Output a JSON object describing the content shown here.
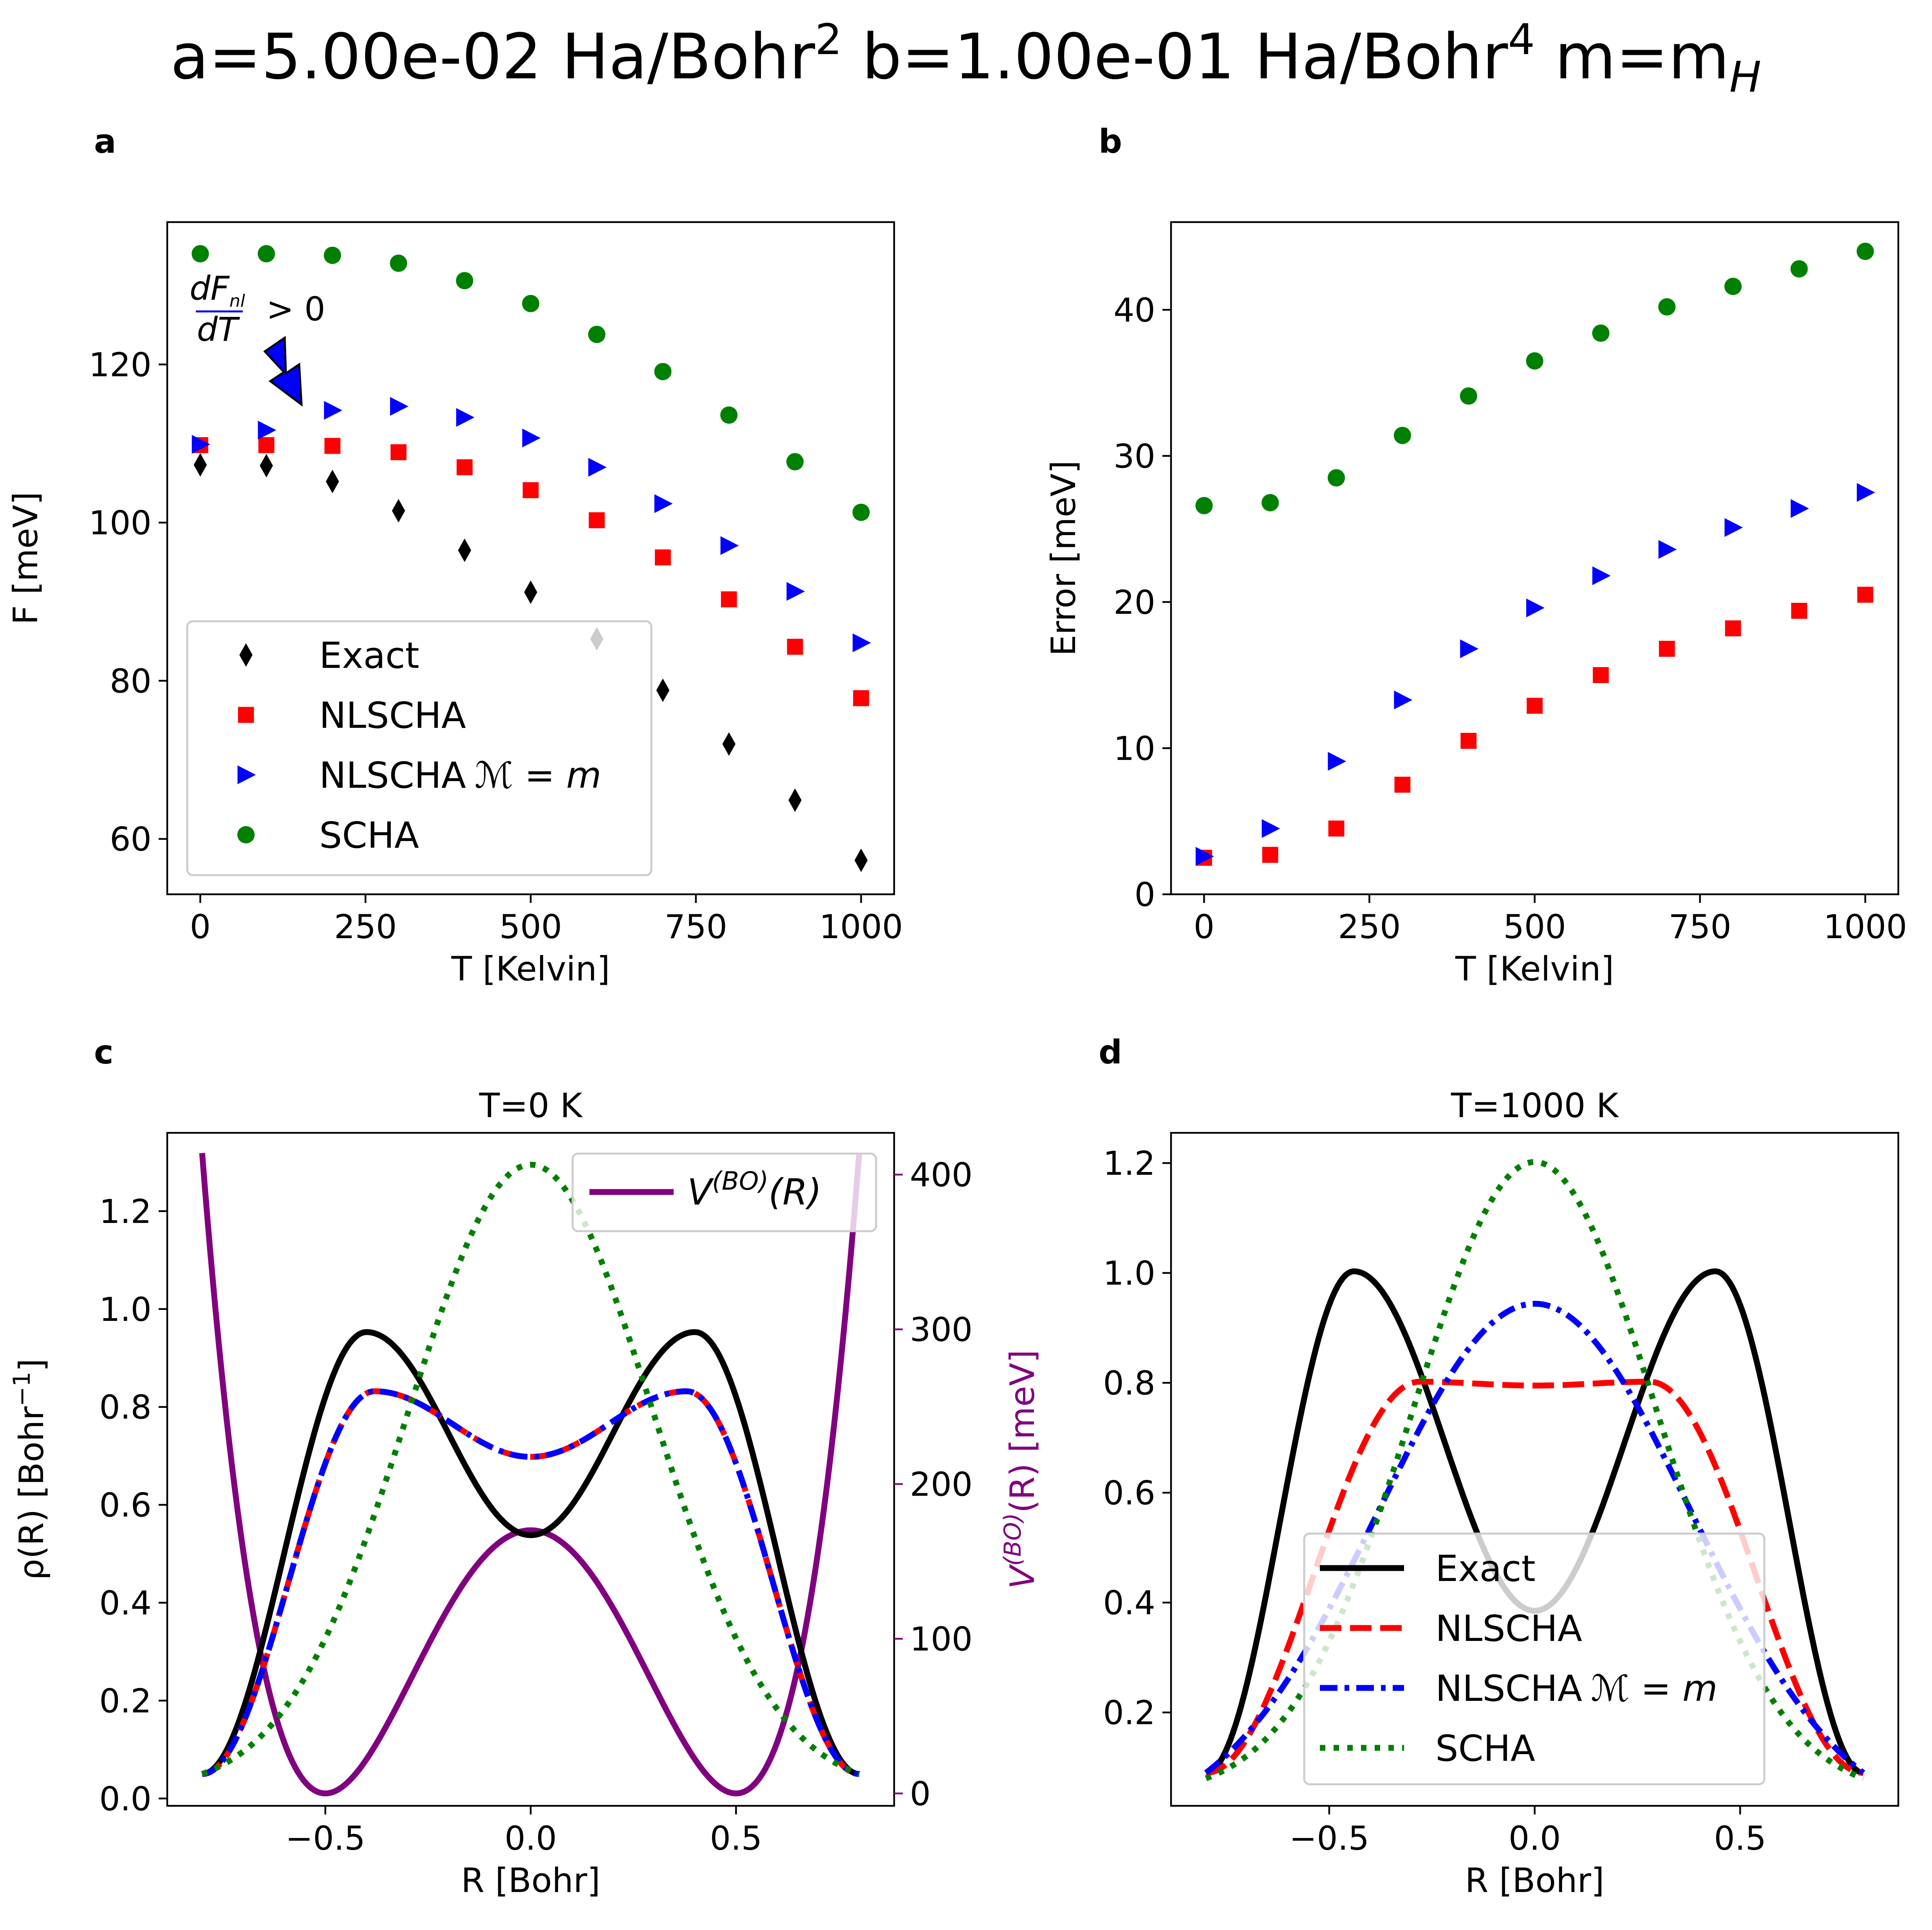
{
  "figure_title": {
    "a_label": "a=5.00e-02 Ha/Bohr",
    "a_sup": "2",
    "b_label": " b=1.00e-01 Ha/Bohr",
    "b_sup": "4",
    "m_label": " m=m",
    "m_sub": "H"
  },
  "colors": {
    "exact": "#000000",
    "nlscha": "#ff0000",
    "nlscha_m": "#0000ff",
    "scha": "#008000",
    "vbo": "#800080",
    "annotation": "#0000ff"
  },
  "chart_data": [
    {
      "panel": "a",
      "type": "scatter",
      "title": "",
      "xlabel": "T [Kelvin]",
      "ylabel": "F [meV]",
      "xlim": [
        -50,
        1050
      ],
      "ylim": [
        53,
        138
      ],
      "xticks": [
        "0",
        "250",
        "500",
        "750",
        "1000"
      ],
      "yticks": [
        "60",
        "80",
        "100",
        "120"
      ],
      "x": [
        0,
        100,
        200,
        300,
        400,
        500,
        600,
        700,
        800,
        900,
        1000
      ],
      "series": [
        {
          "name": "Exact",
          "marker": "diamond",
          "color": "#000000",
          "values": [
            107.3,
            107.2,
            105.2,
            101.5,
            96.5,
            91.2,
            85.3,
            78.8,
            72.0,
            64.9,
            57.3
          ]
        },
        {
          "name": "NLSCHA",
          "marker": "square",
          "color": "#ff0000",
          "values": [
            109.8,
            109.8,
            109.7,
            108.9,
            107.0,
            104.1,
            100.3,
            95.6,
            90.3,
            84.3,
            77.8
          ]
        },
        {
          "name": "NLSCHA",
          "name_math": "ℳ = m",
          "marker": "triangle-right",
          "color": "#0000ff",
          "values": [
            109.9,
            111.7,
            114.2,
            114.7,
            113.3,
            110.7,
            107.0,
            102.4,
            97.1,
            91.3,
            84.8
          ]
        },
        {
          "name": "SCHA",
          "marker": "circle",
          "color": "#008000",
          "values": [
            134.0,
            134.0,
            133.8,
            132.8,
            130.6,
            127.7,
            123.8,
            119.1,
            113.6,
            107.7,
            101.3
          ]
        }
      ],
      "legend": [
        "Exact",
        "NLSCHA",
        "NLSCHA",
        "SCHA"
      ],
      "legend_math": "ℳ = m",
      "legend_position": "lower-left",
      "annotation": {
        "num": "dF",
        "num_sub": "nl",
        "den": "dT",
        "rel": "> 0"
      }
    },
    {
      "panel": "b",
      "type": "scatter",
      "title": "",
      "xlabel": "T [Kelvin]",
      "ylabel": "Error [meV]",
      "xlim": [
        -50,
        1050
      ],
      "ylim": [
        0,
        46
      ],
      "xticks": [
        "0",
        "250",
        "500",
        "750",
        "1000"
      ],
      "yticks": [
        "0",
        "10",
        "20",
        "30",
        "40"
      ],
      "x": [
        0,
        100,
        200,
        300,
        400,
        500,
        600,
        700,
        800,
        900,
        1000
      ],
      "series": [
        {
          "name": "NLSCHA",
          "marker": "square",
          "color": "#ff0000",
          "values": [
            2.5,
            2.7,
            4.5,
            7.5,
            10.5,
            12.9,
            15.0,
            16.8,
            18.2,
            19.4,
            20.5
          ]
        },
        {
          "name": "NLSCHA ℳ = m",
          "marker": "triangle-right",
          "color": "#0000ff",
          "values": [
            2.6,
            4.5,
            9.1,
            13.3,
            16.8,
            19.6,
            21.8,
            23.6,
            25.1,
            26.4,
            27.5
          ]
        },
        {
          "name": "SCHA",
          "marker": "circle",
          "color": "#008000",
          "values": [
            26.6,
            26.8,
            28.5,
            31.4,
            34.1,
            36.5,
            38.4,
            40.2,
            41.6,
            42.8,
            44.0
          ]
        }
      ]
    },
    {
      "panel": "c",
      "type": "line",
      "title": "T=0 K",
      "xlabel": "R [Bohr]",
      "ylabel": "ρ(R) [Bohr⁻¹]",
      "ylabel_parts": {
        "main": "ρ(R) [Bohr",
        "sup": "−1",
        "end": "]"
      },
      "y2label_parts": {
        "main": "V",
        "sup": "(BO)",
        "end": "(R) [meV]"
      },
      "xlim": [
        -0.885,
        0.885
      ],
      "ylim": [
        -0.015,
        1.36
      ],
      "y2lim": [
        -8,
        427
      ],
      "xticks": [
        "−0.5",
        "0.0",
        "0.5"
      ],
      "yticks": [
        "0.0",
        "0.2",
        "0.4",
        "0.6",
        "0.8",
        "1.0",
        "1.2"
      ],
      "y2ticks": [
        "0",
        "100",
        "200",
        "300",
        "400"
      ],
      "x_range": [
        -0.8,
        0.8
      ],
      "series": [
        {
          "name": "Exact",
          "style": "solid",
          "color": "#000000",
          "profile": {
            "kind": "double-peak",
            "peak_x": 0.4,
            "peak": 0.953,
            "center": 0.538,
            "end": 0.05
          }
        },
        {
          "name": "NLSCHA",
          "style": "dashed",
          "color": "#ff0000",
          "profile": {
            "kind": "double-peak",
            "peak_x": 0.38,
            "peak": 0.832,
            "center": 0.698,
            "end": 0.05
          }
        },
        {
          "name": "NLSCHA ℳ = m",
          "style": "dashdot",
          "color": "#0000ff",
          "profile": {
            "kind": "double-peak",
            "peak_x": 0.38,
            "peak": 0.832,
            "center": 0.698,
            "end": 0.05
          }
        },
        {
          "name": "SCHA",
          "style": "dotted",
          "color": "#008000",
          "profile": {
            "kind": "gaussian",
            "peak": 1.295,
            "sigma": 0.2974,
            "end": 0.05
          }
        },
        {
          "name": "V(BO)(R)",
          "axis": "right",
          "style": "solid",
          "color": "#800080",
          "profile": {
            "kind": "double-well",
            "barrier_meV": 170.1,
            "min_x": 0.5
          }
        }
      ],
      "legend": {
        "main": "V",
        "sup": "(BO)",
        "end": "(R)"
      },
      "legend_position": "upper-right"
    },
    {
      "panel": "d",
      "type": "line",
      "title": "T=1000 K",
      "xlabel": "R [Bohr]",
      "ylabel": "",
      "xlim": [
        -0.885,
        0.885
      ],
      "ylim": [
        0.03,
        1.255
      ],
      "xticks": [
        "−0.5",
        "0.0",
        "0.5"
      ],
      "yticks": [
        "0.2",
        "0.4",
        "0.6",
        "0.8",
        "1.0",
        "1.2"
      ],
      "x_range": [
        -0.8,
        0.8
      ],
      "series": [
        {
          "name": "Exact",
          "style": "solid",
          "color": "#000000",
          "profile": {
            "kind": "double-peak",
            "peak_x": 0.44,
            "peak": 1.003,
            "center": 0.385,
            "end": 0.09
          }
        },
        {
          "name": "NLSCHA",
          "style": "dashed",
          "color": "#ff0000",
          "profile": {
            "kind": "double-peak",
            "peak_x": 0.28,
            "peak": 0.802,
            "center": 0.795,
            "end": 0.09
          }
        },
        {
          "name": "NLSCHA ℳ = m",
          "style": "dashdot",
          "color": "#0000ff",
          "profile": {
            "kind": "gaussian",
            "peak": 0.944,
            "sigma": 0.38,
            "end": 0.09
          }
        },
        {
          "name": "SCHA",
          "style": "dotted",
          "color": "#008000",
          "profile": {
            "kind": "gaussian",
            "peak": 1.202,
            "sigma": 0.2974,
            "end": 0.08
          }
        }
      ],
      "legend": [
        "Exact",
        "NLSCHA",
        "NLSCHA",
        "SCHA"
      ],
      "legend_math": "ℳ = m",
      "legend_position": "lower-center"
    }
  ]
}
